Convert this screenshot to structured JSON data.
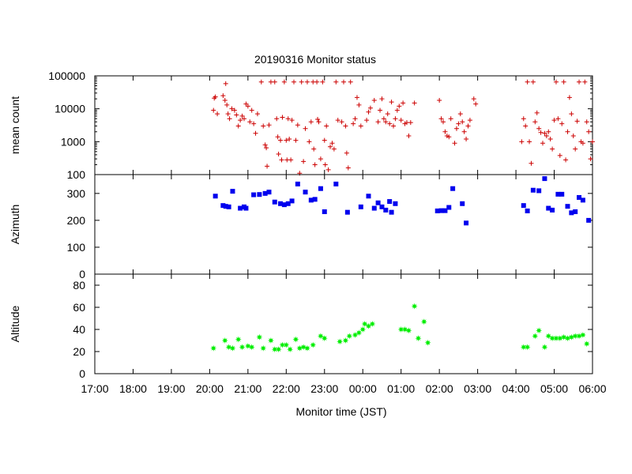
{
  "chart_data": {
    "type": "scatter",
    "title": "20190316 Monitor status",
    "xlabel": "Monitor time (JST)",
    "x_unit": "hours",
    "xlim": [
      17,
      30
    ],
    "x_ticks": [
      17,
      18,
      19,
      20,
      21,
      22,
      23,
      24,
      25,
      26,
      27,
      28,
      29,
      30
    ],
    "x_tick_labels": [
      "17:00",
      "18:00",
      "19:00",
      "20:00",
      "21:00",
      "22:00",
      "23:00",
      "00:00",
      "01:00",
      "02:00",
      "03:00",
      "04:00",
      "05:00",
      "06:00"
    ],
    "grid": false,
    "legend": "none",
    "panels": [
      {
        "name": "mean count",
        "ylabel": "mean count",
        "yscale": "log",
        "ylim": [
          100,
          100000
        ],
        "y_ticks": [
          100,
          1000,
          10000,
          100000
        ],
        "y_tick_labels": [
          "100",
          "1000",
          "10000",
          "100000"
        ],
        "marker": "plus",
        "color": "#cc0000",
        "points": [
          [
            20.1,
            9000
          ],
          [
            20.12,
            21000
          ],
          [
            20.15,
            23000
          ],
          [
            20.2,
            7000
          ],
          [
            20.35,
            25000
          ],
          [
            20.4,
            18000
          ],
          [
            20.42,
            58000
          ],
          [
            20.45,
            13000
          ],
          [
            20.48,
            7000
          ],
          [
            20.52,
            5000
          ],
          [
            20.58,
            10000
          ],
          [
            20.65,
            9000
          ],
          [
            20.7,
            6500
          ],
          [
            20.75,
            3000
          ],
          [
            20.8,
            4500
          ],
          [
            20.85,
            6000
          ],
          [
            20.9,
            5000
          ],
          [
            20.95,
            14000
          ],
          [
            21.0,
            12000
          ],
          [
            21.05,
            4000
          ],
          [
            21.1,
            9000
          ],
          [
            21.15,
            3500
          ],
          [
            21.2,
            1800
          ],
          [
            21.25,
            7000
          ],
          [
            21.35,
            65000
          ],
          [
            21.4,
            3000
          ],
          [
            21.45,
            800
          ],
          [
            21.48,
            650
          ],
          [
            21.5,
            180
          ],
          [
            21.55,
            3200
          ],
          [
            21.6,
            65000
          ],
          [
            21.7,
            65000
          ],
          [
            21.75,
            5000
          ],
          [
            21.78,
            1400
          ],
          [
            21.8,
            420
          ],
          [
            21.85,
            1100
          ],
          [
            21.88,
            280
          ],
          [
            21.9,
            5500
          ],
          [
            21.95,
            65000
          ],
          [
            22.0,
            1100
          ],
          [
            22.02,
            280
          ],
          [
            22.05,
            5000
          ],
          [
            22.08,
            1200
          ],
          [
            22.12,
            280
          ],
          [
            22.15,
            4500
          ],
          [
            22.2,
            65000
          ],
          [
            22.25,
            1100
          ],
          [
            22.3,
            3200
          ],
          [
            22.35,
            110
          ],
          [
            22.4,
            65000
          ],
          [
            22.45,
            250
          ],
          [
            22.5,
            2500
          ],
          [
            22.55,
            65000
          ],
          [
            22.6,
            1000
          ],
          [
            22.65,
            4000
          ],
          [
            22.7,
            65000
          ],
          [
            22.72,
            600
          ],
          [
            22.75,
            200
          ],
          [
            22.8,
            65000
          ],
          [
            22.82,
            4800
          ],
          [
            22.85,
            4000
          ],
          [
            22.9,
            300
          ],
          [
            22.95,
            65000
          ],
          [
            23.0,
            1100
          ],
          [
            23.02,
            200
          ],
          [
            23.05,
            3000
          ],
          [
            23.1,
            140
          ],
          [
            23.15,
            700
          ],
          [
            23.2,
            900
          ],
          [
            23.25,
            600
          ],
          [
            23.3,
            65000
          ],
          [
            23.35,
            4500
          ],
          [
            23.45,
            4000
          ],
          [
            23.5,
            65000
          ],
          [
            23.55,
            3000
          ],
          [
            23.58,
            450
          ],
          [
            23.62,
            160
          ],
          [
            23.68,
            65000
          ],
          [
            23.75,
            3500
          ],
          [
            23.8,
            5000
          ],
          [
            23.85,
            22000
          ],
          [
            23.9,
            13000
          ],
          [
            23.95,
            3000
          ],
          [
            24.1,
            4500
          ],
          [
            24.15,
            8000
          ],
          [
            24.2,
            10500
          ],
          [
            24.3,
            18000
          ],
          [
            24.4,
            4000
          ],
          [
            24.45,
            9000
          ],
          [
            24.5,
            20000
          ],
          [
            24.55,
            5000
          ],
          [
            24.6,
            4000
          ],
          [
            24.65,
            7000
          ],
          [
            24.7,
            3500
          ],
          [
            24.75,
            16000
          ],
          [
            24.8,
            3000
          ],
          [
            24.85,
            5000
          ],
          [
            24.9,
            9000
          ],
          [
            24.95,
            12000
          ],
          [
            25.0,
            4500
          ],
          [
            25.05,
            15000
          ],
          [
            25.1,
            3500
          ],
          [
            25.15,
            3800
          ],
          [
            25.2,
            1500
          ],
          [
            25.25,
            3800
          ],
          [
            25.35,
            15000
          ],
          [
            26.0,
            18000
          ],
          [
            26.05,
            5000
          ],
          [
            26.1,
            4000
          ],
          [
            26.15,
            2000
          ],
          [
            26.2,
            1500
          ],
          [
            26.25,
            1400
          ],
          [
            26.3,
            5000
          ],
          [
            26.4,
            900
          ],
          [
            26.45,
            2500
          ],
          [
            26.5,
            3500
          ],
          [
            26.55,
            7000
          ],
          [
            26.6,
            4000
          ],
          [
            26.65,
            2000
          ],
          [
            26.7,
            1200
          ],
          [
            26.75,
            3000
          ],
          [
            26.8,
            4500
          ],
          [
            26.9,
            20000
          ],
          [
            26.95,
            14000
          ],
          [
            28.15,
            1000
          ],
          [
            28.2,
            5000
          ],
          [
            28.25,
            3000
          ],
          [
            28.3,
            65000
          ],
          [
            28.35,
            1000
          ],
          [
            28.4,
            220
          ],
          [
            28.45,
            65000
          ],
          [
            28.5,
            4000
          ],
          [
            28.55,
            7500
          ],
          [
            28.6,
            2500
          ],
          [
            28.65,
            1900
          ],
          [
            28.7,
            900
          ],
          [
            28.75,
            1800
          ],
          [
            28.8,
            1500
          ],
          [
            28.85,
            2000
          ],
          [
            28.9,
            1200
          ],
          [
            28.95,
            600
          ],
          [
            29.0,
            4500
          ],
          [
            29.05,
            65000
          ],
          [
            29.1,
            5000
          ],
          [
            29.15,
            380
          ],
          [
            29.2,
            3500
          ],
          [
            29.25,
            65000
          ],
          [
            29.3,
            280
          ],
          [
            29.35,
            2000
          ],
          [
            29.4,
            22000
          ],
          [
            29.45,
            7000
          ],
          [
            29.5,
            1500
          ],
          [
            29.55,
            600
          ],
          [
            29.6,
            4200
          ],
          [
            29.65,
            65000
          ],
          [
            29.7,
            1000
          ],
          [
            29.75,
            900
          ],
          [
            29.8,
            65000
          ],
          [
            29.85,
            4000
          ],
          [
            29.9,
            2000
          ],
          [
            29.95,
            300
          ],
          [
            30.0,
            1000
          ]
        ]
      },
      {
        "name": "Azimuth",
        "ylabel": "Azimuth",
        "yscale": "linear",
        "ylim": [
          0,
          370
        ],
        "y_ticks": [
          0,
          100,
          200,
          300
        ],
        "y_tick_labels": [
          "0",
          "100",
          "200",
          "300"
        ],
        "marker": "filled-square",
        "color": "#0000ee",
        "points": [
          [
            20.15,
            290
          ],
          [
            20.35,
            255
          ],
          [
            20.42,
            252
          ],
          [
            20.5,
            250
          ],
          [
            20.6,
            308
          ],
          [
            20.8,
            245
          ],
          [
            20.9,
            250
          ],
          [
            20.95,
            245
          ],
          [
            21.15,
            295
          ],
          [
            21.3,
            296
          ],
          [
            21.45,
            300
          ],
          [
            21.55,
            305
          ],
          [
            21.7,
            268
          ],
          [
            21.85,
            262
          ],
          [
            21.95,
            258
          ],
          [
            22.05,
            262
          ],
          [
            22.15,
            272
          ],
          [
            22.3,
            335
          ],
          [
            22.5,
            305
          ],
          [
            22.65,
            275
          ],
          [
            22.75,
            278
          ],
          [
            22.9,
            318
          ],
          [
            23.0,
            232
          ],
          [
            23.3,
            335
          ],
          [
            23.6,
            230
          ],
          [
            23.95,
            250
          ],
          [
            24.15,
            290
          ],
          [
            24.3,
            245
          ],
          [
            24.4,
            265
          ],
          [
            24.5,
            250
          ],
          [
            24.6,
            238
          ],
          [
            24.7,
            270
          ],
          [
            24.75,
            230
          ],
          [
            24.85,
            262
          ],
          [
            25.95,
            235
          ],
          [
            26.05,
            236
          ],
          [
            26.15,
            236
          ],
          [
            26.25,
            248
          ],
          [
            26.35,
            318
          ],
          [
            26.6,
            262
          ],
          [
            26.7,
            190
          ],
          [
            28.2,
            255
          ],
          [
            28.3,
            235
          ],
          [
            28.45,
            312
          ],
          [
            28.6,
            310
          ],
          [
            28.75,
            355
          ],
          [
            28.85,
            245
          ],
          [
            28.95,
            238
          ],
          [
            29.1,
            297
          ],
          [
            29.2,
            297
          ],
          [
            29.35,
            252
          ],
          [
            29.45,
            228
          ],
          [
            29.55,
            232
          ],
          [
            29.65,
            285
          ],
          [
            29.75,
            275
          ],
          [
            29.9,
            200
          ]
        ]
      },
      {
        "name": "Altitude",
        "ylabel": "Altitude",
        "yscale": "linear",
        "ylim": [
          0,
          90
        ],
        "y_ticks": [
          0,
          20,
          40,
          60,
          80
        ],
        "y_tick_labels": [
          "0",
          "20",
          "40",
          "60",
          "80"
        ],
        "marker": "filled-star",
        "color": "#00ee00",
        "points": [
          [
            20.1,
            23
          ],
          [
            20.4,
            30
          ],
          [
            20.5,
            24
          ],
          [
            20.6,
            23
          ],
          [
            20.75,
            31
          ],
          [
            20.85,
            24
          ],
          [
            21.0,
            25
          ],
          [
            21.1,
            24
          ],
          [
            21.3,
            33
          ],
          [
            21.4,
            23
          ],
          [
            21.6,
            30
          ],
          [
            21.7,
            22
          ],
          [
            21.8,
            22
          ],
          [
            21.9,
            26
          ],
          [
            22.0,
            26
          ],
          [
            22.1,
            22
          ],
          [
            22.25,
            31
          ],
          [
            22.35,
            23
          ],
          [
            22.45,
            24
          ],
          [
            22.55,
            23
          ],
          [
            22.7,
            26
          ],
          [
            22.9,
            34
          ],
          [
            23.0,
            32
          ],
          [
            23.4,
            29
          ],
          [
            23.55,
            30
          ],
          [
            23.65,
            34
          ],
          [
            23.8,
            35
          ],
          [
            23.9,
            37
          ],
          [
            24.0,
            40
          ],
          [
            24.05,
            45
          ],
          [
            24.15,
            43
          ],
          [
            24.25,
            45
          ],
          [
            25.0,
            40
          ],
          [
            25.1,
            40
          ],
          [
            25.2,
            39
          ],
          [
            25.35,
            61
          ],
          [
            25.45,
            32
          ],
          [
            25.6,
            47
          ],
          [
            25.7,
            28
          ],
          [
            28.2,
            24
          ],
          [
            28.3,
            24
          ],
          [
            28.5,
            34
          ],
          [
            28.6,
            39
          ],
          [
            28.75,
            24
          ],
          [
            28.85,
            34
          ],
          [
            28.95,
            32
          ],
          [
            29.05,
            32
          ],
          [
            29.15,
            32
          ],
          [
            29.25,
            33
          ],
          [
            29.35,
            32
          ],
          [
            29.45,
            33
          ],
          [
            29.55,
            34
          ],
          [
            29.65,
            34
          ],
          [
            29.75,
            35
          ],
          [
            29.85,
            27
          ]
        ]
      }
    ]
  }
}
